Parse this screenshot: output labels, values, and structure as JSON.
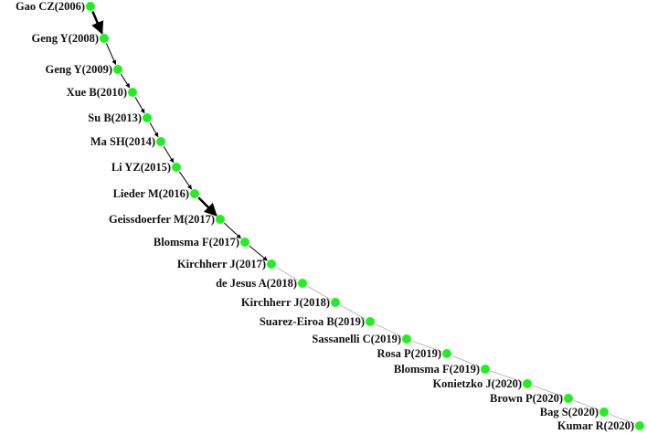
{
  "nodes": [
    {
      "label": "Gao CZ(2006)"
    },
    {
      "label": "Geng Y(2008)"
    },
    {
      "label": "Geng Y(2009)"
    },
    {
      "label": "Xue B(2010)"
    },
    {
      "label": "Su B(2013)"
    },
    {
      "label": "Ma SH(2014)"
    },
    {
      "label": "Li YZ(2015)"
    },
    {
      "label": "Lieder M(2016)"
    },
    {
      "label": "Geissdoerfer M(2017)"
    },
    {
      "label": "Blomsma F(2017)"
    },
    {
      "label": "Kirchherr J(2017)"
    },
    {
      "label": "de Jesus A(2018)"
    },
    {
      "label": "Kirchherr J(2018)"
    },
    {
      "label": "Suarez-Eiroa B(2019)"
    },
    {
      "label": "Sassanelli C(2019)"
    },
    {
      "label": "Rosa P(2019)"
    },
    {
      "label": "Blomsma F(2019)"
    },
    {
      "label": "Konietzko J(2020)"
    },
    {
      "label": "Brown P(2020)"
    },
    {
      "label": "Bag S(2020)"
    },
    {
      "label": "Kumar R(2020)"
    }
  ]
}
